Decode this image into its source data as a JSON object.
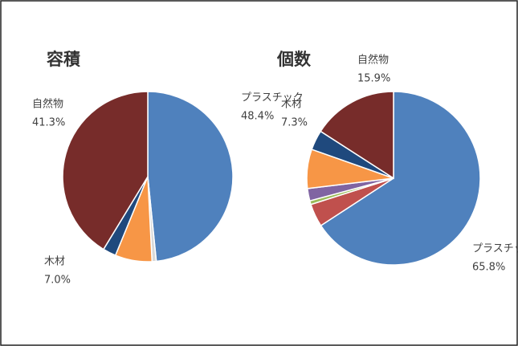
{
  "chart_data": [
    {
      "type": "pie",
      "title": "容積",
      "categories": [
        "プラスチック",
        null,
        "木材",
        null,
        "自然物"
      ],
      "values": [
        48.4,
        0.8,
        7.0,
        2.5,
        41.3
      ],
      "value_labels": [
        "48.4%",
        null,
        "7.0%",
        null,
        "41.3%"
      ],
      "colors": [
        "#4f81bd",
        "#d9d9d9",
        "#f79646",
        "#1f497d",
        "#772c2a"
      ]
    },
    {
      "type": "pie",
      "title": "個数",
      "categories": [
        "プラスチック",
        null,
        null,
        null,
        "木材",
        null,
        "自然物"
      ],
      "values": [
        65.8,
        4.3,
        0.7,
        2.3,
        7.3,
        3.7,
        15.9
      ],
      "value_labels": [
        "65.8%",
        null,
        null,
        null,
        "7.3%",
        null,
        "15.9%"
      ],
      "colors": [
        "#4f81bd",
        "#c0504d",
        "#9bbb59",
        "#8064a2",
        "#f79646",
        "#1f497d",
        "#772c2a"
      ]
    }
  ]
}
